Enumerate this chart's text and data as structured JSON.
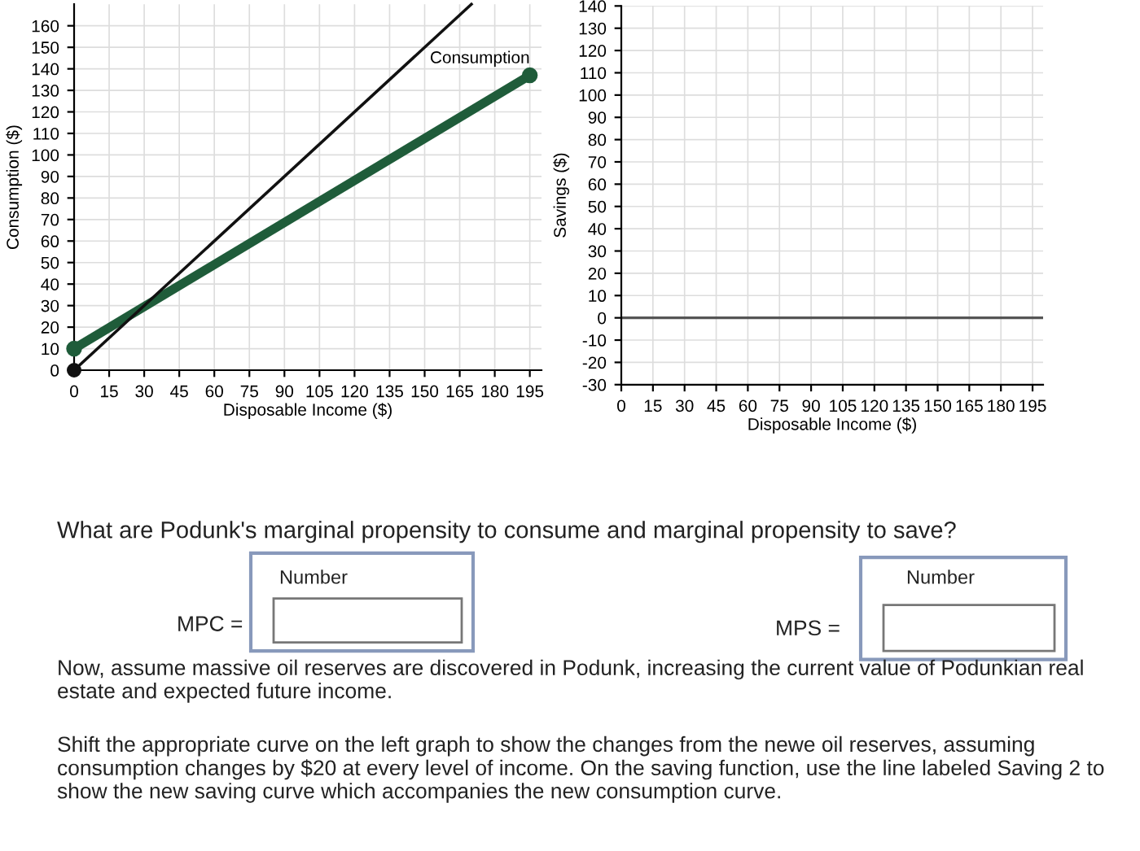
{
  "chart_data": [
    {
      "type": "line",
      "xlabel": "Disposable Income ($)",
      "ylabel": "Consumption ($)",
      "xlim": [
        0,
        200
      ],
      "xticks": [
        0,
        15,
        30,
        45,
        60,
        75,
        90,
        105,
        120,
        135,
        150,
        165,
        180,
        195
      ],
      "ylim": [
        0,
        170
      ],
      "yticks": [
        0,
        10,
        20,
        30,
        40,
        50,
        60,
        70,
        80,
        90,
        100,
        110,
        120,
        130,
        140,
        150,
        160
      ],
      "grid": true,
      "series": [
        {
          "name": "Consumption",
          "color": "#1f5c3a",
          "x": [
            0,
            195
          ],
          "values": [
            10,
            137
          ],
          "marker": "circle"
        },
        {
          "color": "#111111",
          "x": [
            0,
            170
          ],
          "values": [
            0,
            170
          ],
          "marker": "none"
        },
        {
          "type": "scatter",
          "color": "#111111",
          "x": [
            0
          ],
          "values": [
            0
          ],
          "marker": "circle"
        }
      ]
    },
    {
      "type": "line",
      "xlabel": "Disposable Income ($)",
      "ylabel": "Savings ($)",
      "xlim": [
        0,
        200
      ],
      "xticks": [
        0,
        15,
        30,
        45,
        60,
        75,
        90,
        105,
        120,
        135,
        150,
        165,
        180,
        195
      ],
      "ylim": [
        -30,
        140
      ],
      "yticks": [
        -30,
        -20,
        -10,
        0,
        10,
        20,
        30,
        40,
        50,
        60,
        70,
        80,
        90,
        100,
        110,
        120,
        130,
        140
      ],
      "grid": true,
      "ref_lines": [
        {
          "axis": "y",
          "value": 0,
          "color": "#555555"
        }
      ],
      "annotations": [
        "What are Podunk's marginal propensity to consume and marginal propensity to save?",
        "Number",
        "MPC =",
        "Number",
        "MPS =",
        "Now, assume massive oil reserves are discovered in Podunk, increasing the current value of Podunkian real estate and expected future income.",
        "Shift the appropriate curve on the left graph to show the changes from the newe oil reserves, assuming consumption changes by $20 at every level of income. On the saving function, use the line labeled Saving 2 to show the new saving curve which accompanies the new consumption curve."
      ]
    }
  ]
}
